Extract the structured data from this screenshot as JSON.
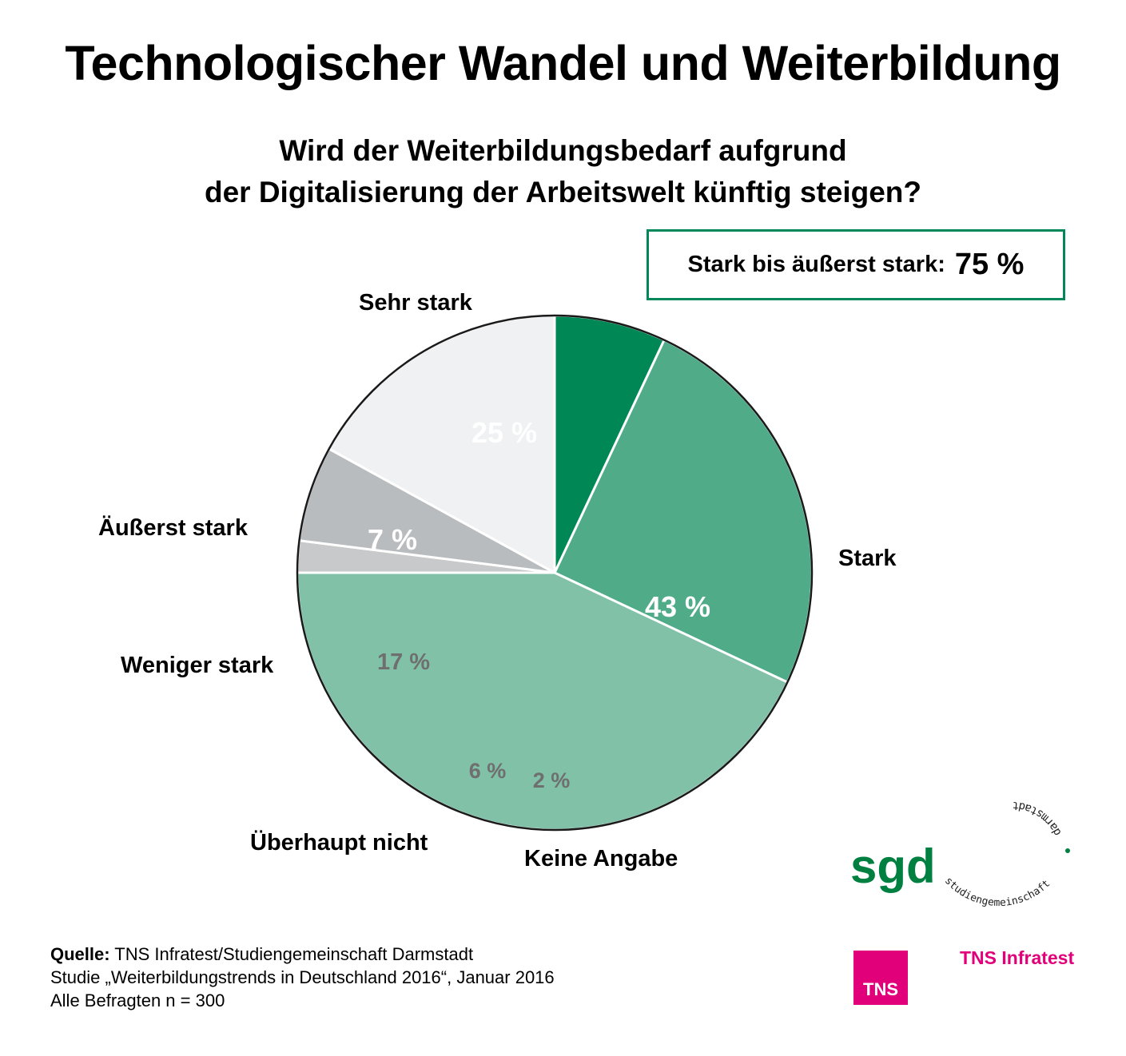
{
  "header": {
    "title": "Technologischer Wandel und Weiterbildung",
    "subtitle_line1": "Wird der Weiterbildungsbedarf aufgrund",
    "subtitle_line2": "der Digitalisierung der Arbeitswelt künftig steigen?"
  },
  "highlight": {
    "label": "Stark bis äußerst stark:",
    "value": "75 %"
  },
  "chart_data": {
    "type": "pie",
    "title": "Wird der Weiterbildungsbedarf aufgrund der Digitalisierung der Arbeitswelt künftig steigen?",
    "start_angle_deg": 25.2,
    "direction": "clockwise",
    "slices": [
      {
        "label": "Sehr stark",
        "value": 25,
        "value_label": "25 %",
        "color": "#50ab89",
        "text_color": "#ffffff"
      },
      {
        "label": "Stark",
        "value": 43,
        "value_label": "43 %",
        "color": "#80c1a8",
        "text_color": "#ffffff"
      },
      {
        "label": "Keine Angabe",
        "value": 2,
        "value_label": "2 %",
        "color": "#c8c9ca",
        "text_color": "#6f6f6f"
      },
      {
        "label": "Überhaupt nicht",
        "value": 6,
        "value_label": "6 %",
        "color": "#b9bcbe",
        "text_color": "#6f6f6f"
      },
      {
        "label": "Weniger stark",
        "value": 17,
        "value_label": "17 %",
        "color": "#f0f1f2",
        "text_color": "#6f6f6f"
      },
      {
        "label": "Äußerst stark",
        "value": 7,
        "value_label": "7 %",
        "color": "#008756",
        "text_color": "#ffffff"
      }
    ]
  },
  "footer": {
    "source_label": "Quelle:",
    "source_text": "TNS Infratest/Studiengemeinschaft Darmstadt",
    "study": "Studie „Weiterbildungstrends in Deutschland 2016“, Januar 2016",
    "sample": "Alle Befragten n = 300"
  },
  "logos": {
    "sgd_mark": "sgd",
    "sgd_ring_top": "darmstadt",
    "sgd_ring_bottom": "studiengemeinschaft",
    "tns_box": "TNS",
    "tns_name": "TNS Infratest",
    "sgd_color": "#008040",
    "tns_color": "#e2007a"
  }
}
